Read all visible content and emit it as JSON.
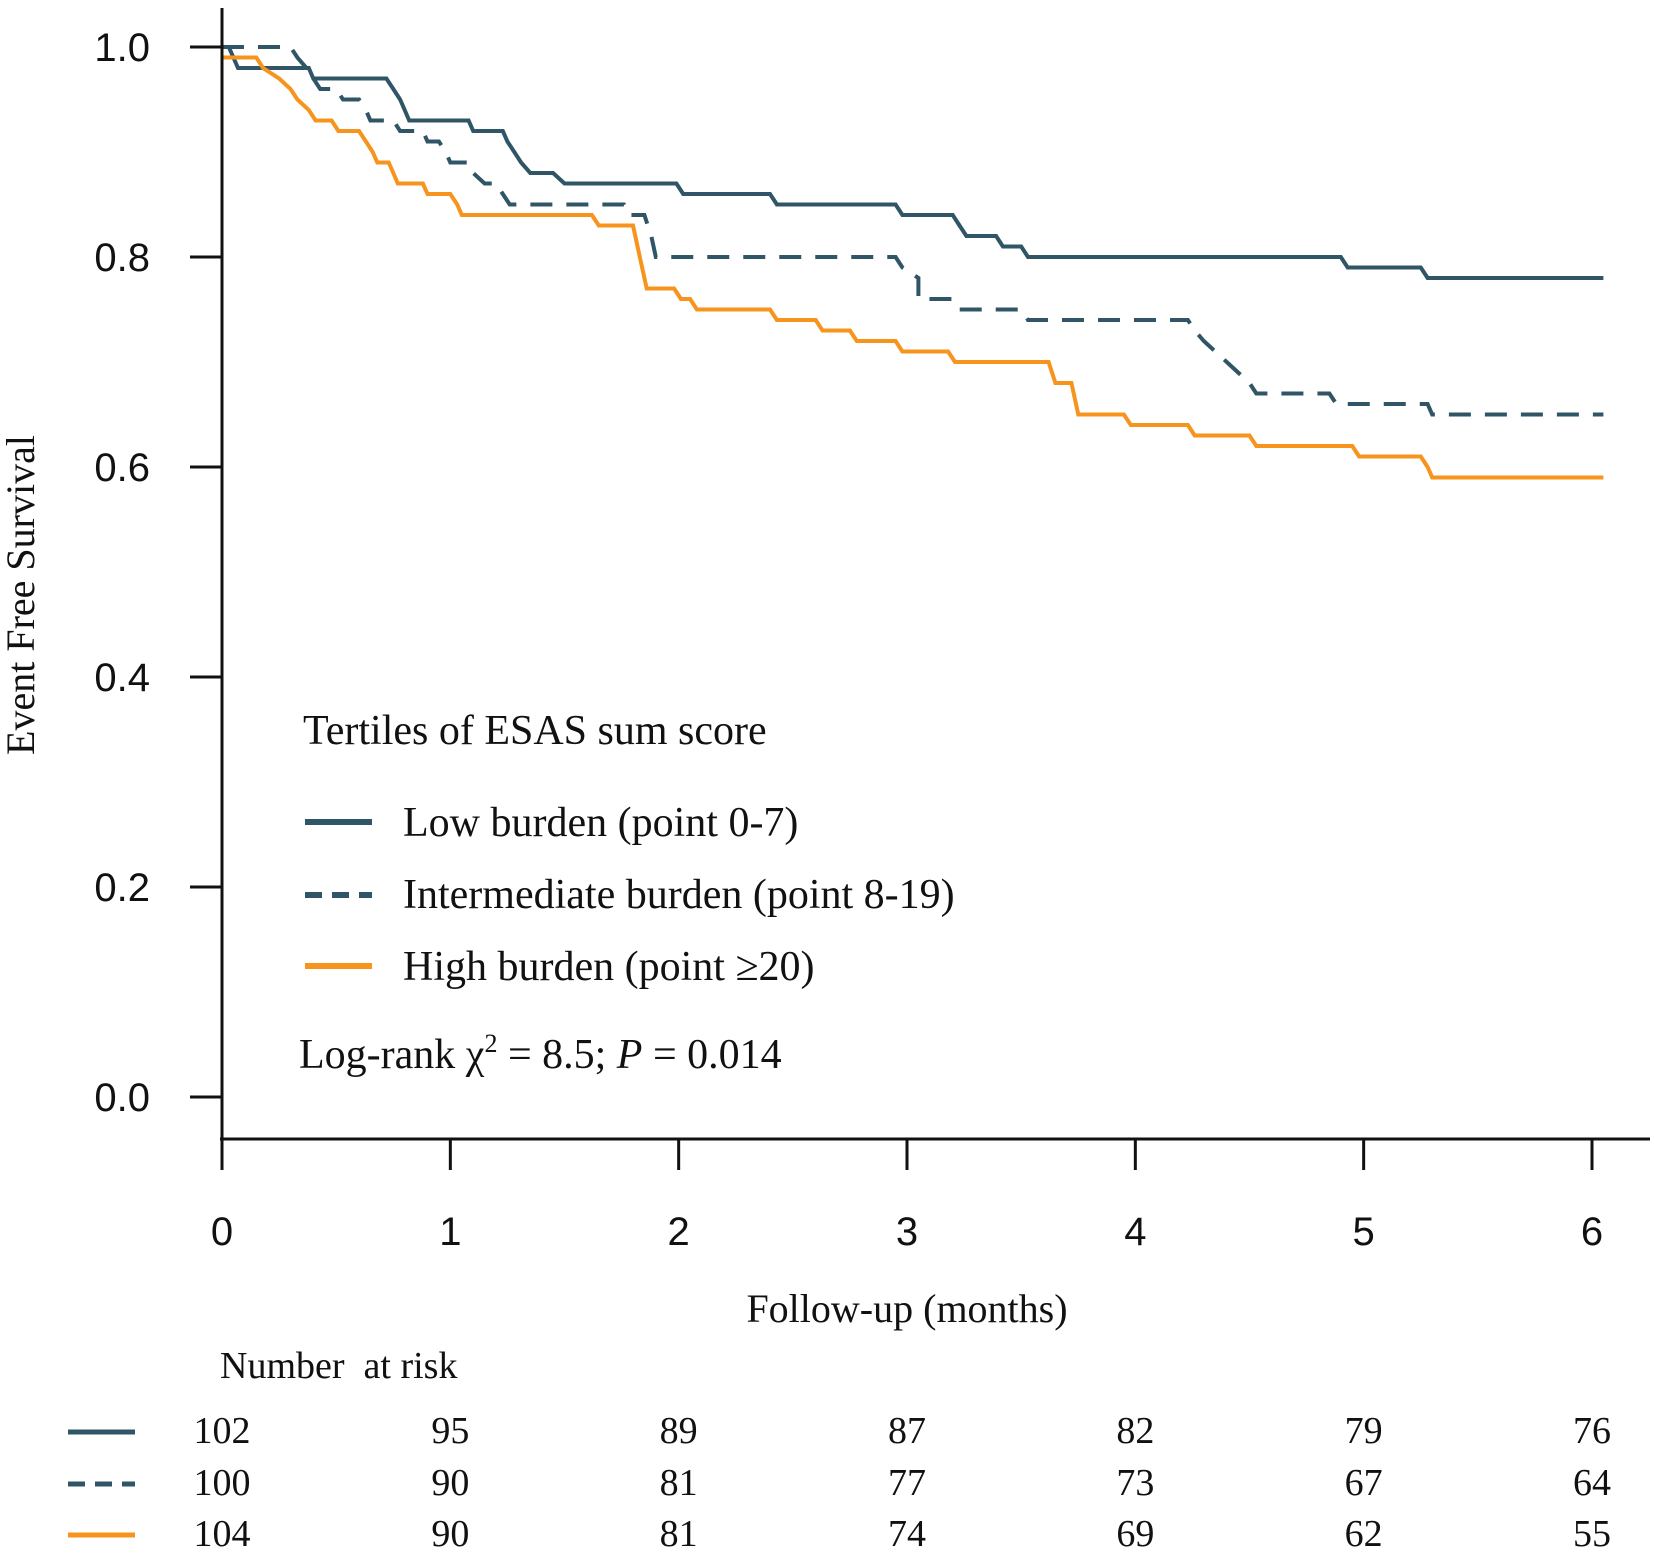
{
  "chart_data": {
    "type": "line",
    "subtype": "kaplan-meier-step",
    "xlabel": "Follow-up (months)",
    "ylabel": "Event Free Survival",
    "xlim": [
      0,
      6
    ],
    "ylim": [
      0,
      1
    ],
    "x_ticks": [
      "0",
      "1",
      "2",
      "3",
      "4",
      "5",
      "6"
    ],
    "y_ticks": [
      "0.0",
      "0.2",
      "0.4",
      "0.6",
      "0.8",
      "1.0"
    ],
    "legend_title": "Tertiles of ESAS sum score",
    "legend_placement": "lower-left",
    "stat_prefix": "Log-rank ",
    "stat_chi": "χ",
    "stat_sup": "2",
    "stat_mid": " = 8.5; ",
    "stat_p": "P",
    "stat_tail": " = 0.014",
    "series": [
      {
        "name": "Low burden (point 0-7)",
        "color": "#2f5566",
        "dash": "solid",
        "points": [
          [
            0,
            1.0
          ],
          [
            0.03,
            1.0
          ],
          [
            0.07,
            0.98
          ],
          [
            0.38,
            0.98
          ],
          [
            0.4,
            0.97
          ],
          [
            0.72,
            0.97
          ],
          [
            0.75,
            0.96
          ],
          [
            0.78,
            0.95
          ],
          [
            0.8,
            0.94
          ],
          [
            0.82,
            0.93
          ],
          [
            1.08,
            0.93
          ],
          [
            1.1,
            0.92
          ],
          [
            1.23,
            0.92
          ],
          [
            1.25,
            0.91
          ],
          [
            1.28,
            0.9
          ],
          [
            1.31,
            0.89
          ],
          [
            1.35,
            0.88
          ],
          [
            1.45,
            0.88
          ],
          [
            1.5,
            0.87
          ],
          [
            1.99,
            0.87
          ],
          [
            2.02,
            0.86
          ],
          [
            2.4,
            0.86
          ],
          [
            2.43,
            0.85
          ],
          [
            2.95,
            0.85
          ],
          [
            2.98,
            0.84
          ],
          [
            3.2,
            0.84
          ],
          [
            3.23,
            0.83
          ],
          [
            3.26,
            0.82
          ],
          [
            3.39,
            0.82
          ],
          [
            3.42,
            0.81
          ],
          [
            3.5,
            0.81
          ],
          [
            3.53,
            0.8
          ],
          [
            4.9,
            0.8
          ],
          [
            4.93,
            0.79
          ],
          [
            5.25,
            0.79
          ],
          [
            5.28,
            0.78
          ],
          [
            6.05,
            0.78
          ]
        ]
      },
      {
        "name": "Intermediate burden (point 8-19)",
        "color": "#2f5566",
        "dash": "dashed",
        "points": [
          [
            0,
            1.0
          ],
          [
            0.3,
            1.0
          ],
          [
            0.33,
            0.99
          ],
          [
            0.37,
            0.98
          ],
          [
            0.4,
            0.97
          ],
          [
            0.43,
            0.96
          ],
          [
            0.5,
            0.96
          ],
          [
            0.53,
            0.95
          ],
          [
            0.6,
            0.95
          ],
          [
            0.63,
            0.94
          ],
          [
            0.65,
            0.93
          ],
          [
            0.75,
            0.93
          ],
          [
            0.78,
            0.92
          ],
          [
            0.88,
            0.92
          ],
          [
            0.9,
            0.91
          ],
          [
            0.95,
            0.91
          ],
          [
            0.98,
            0.9
          ],
          [
            1.0,
            0.89
          ],
          [
            1.08,
            0.89
          ],
          [
            1.1,
            0.88
          ],
          [
            1.15,
            0.87
          ],
          [
            1.2,
            0.87
          ],
          [
            1.23,
            0.86
          ],
          [
            1.26,
            0.85
          ],
          [
            1.76,
            0.85
          ],
          [
            1.78,
            0.84
          ],
          [
            1.85,
            0.84
          ],
          [
            1.88,
            0.82
          ],
          [
            1.9,
            0.8
          ],
          [
            2.95,
            0.8
          ],
          [
            2.98,
            0.79
          ],
          [
            3.05,
            0.78
          ],
          [
            3.05,
            0.76
          ],
          [
            3.2,
            0.76
          ],
          [
            3.23,
            0.75
          ],
          [
            3.5,
            0.75
          ],
          [
            3.53,
            0.74
          ],
          [
            4.23,
            0.74
          ],
          [
            4.26,
            0.73
          ],
          [
            4.3,
            0.72
          ],
          [
            4.35,
            0.71
          ],
          [
            4.4,
            0.7
          ],
          [
            4.45,
            0.69
          ],
          [
            4.5,
            0.68
          ],
          [
            4.53,
            0.67
          ],
          [
            4.85,
            0.67
          ],
          [
            4.88,
            0.66
          ],
          [
            5.28,
            0.66
          ],
          [
            5.3,
            0.65
          ],
          [
            6.05,
            0.65
          ]
        ]
      },
      {
        "name": "High burden (point ≥20)",
        "color": "#f7941d",
        "dash": "solid",
        "points": [
          [
            0,
            0.99
          ],
          [
            0.15,
            0.99
          ],
          [
            0.18,
            0.98
          ],
          [
            0.25,
            0.97
          ],
          [
            0.3,
            0.96
          ],
          [
            0.33,
            0.95
          ],
          [
            0.38,
            0.94
          ],
          [
            0.41,
            0.93
          ],
          [
            0.48,
            0.93
          ],
          [
            0.51,
            0.92
          ],
          [
            0.6,
            0.92
          ],
          [
            0.63,
            0.91
          ],
          [
            0.66,
            0.9
          ],
          [
            0.68,
            0.89
          ],
          [
            0.73,
            0.89
          ],
          [
            0.75,
            0.88
          ],
          [
            0.77,
            0.87
          ],
          [
            0.88,
            0.87
          ],
          [
            0.9,
            0.86
          ],
          [
            1.0,
            0.86
          ],
          [
            1.03,
            0.85
          ],
          [
            1.05,
            0.84
          ],
          [
            1.62,
            0.84
          ],
          [
            1.65,
            0.83
          ],
          [
            1.8,
            0.83
          ],
          [
            1.83,
            0.8
          ],
          [
            1.85,
            0.78
          ],
          [
            1.86,
            0.77
          ],
          [
            1.98,
            0.77
          ],
          [
            2.01,
            0.76
          ],
          [
            2.05,
            0.76
          ],
          [
            2.08,
            0.75
          ],
          [
            2.4,
            0.75
          ],
          [
            2.43,
            0.74
          ],
          [
            2.6,
            0.74
          ],
          [
            2.63,
            0.73
          ],
          [
            2.75,
            0.73
          ],
          [
            2.78,
            0.72
          ],
          [
            2.95,
            0.72
          ],
          [
            2.98,
            0.71
          ],
          [
            3.18,
            0.71
          ],
          [
            3.21,
            0.7
          ],
          [
            3.62,
            0.7
          ],
          [
            3.65,
            0.68
          ],
          [
            3.72,
            0.68
          ],
          [
            3.75,
            0.65
          ],
          [
            3.95,
            0.65
          ],
          [
            3.98,
            0.64
          ],
          [
            4.23,
            0.64
          ],
          [
            4.26,
            0.63
          ],
          [
            4.5,
            0.63
          ],
          [
            4.53,
            0.62
          ],
          [
            4.95,
            0.62
          ],
          [
            4.98,
            0.61
          ],
          [
            5.25,
            0.61
          ],
          [
            5.28,
            0.6
          ],
          [
            5.3,
            0.59
          ],
          [
            6.05,
            0.59
          ]
        ]
      }
    ],
    "risk_table": {
      "title": "Number  at risk",
      "times": [
        0,
        1,
        2,
        3,
        4,
        5,
        6
      ],
      "rows": [
        {
          "series_index": 0,
          "values": [
            "102",
            "95",
            "89",
            "87",
            "82",
            "79",
            "76"
          ]
        },
        {
          "series_index": 1,
          "values": [
            "100",
            "90",
            "81",
            "77",
            "73",
            "67",
            "64"
          ]
        },
        {
          "series_index": 2,
          "values": [
            "104",
            "90",
            "81",
            "74",
            "69",
            "62",
            "55"
          ]
        }
      ]
    }
  }
}
